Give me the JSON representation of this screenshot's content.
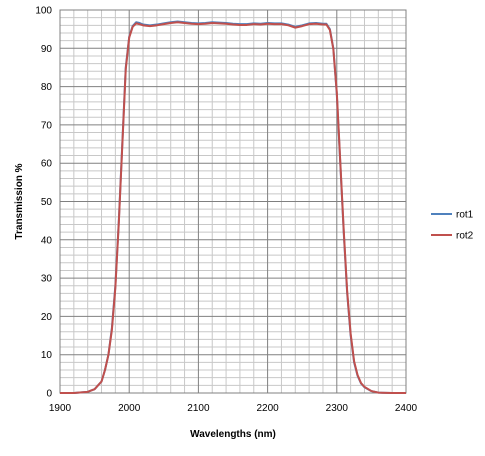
{
  "chart_data": {
    "type": "line",
    "title": "",
    "xlabel": "Wavelengths (nm)",
    "ylabel": "Transmission %",
    "xlim": [
      1900,
      2400
    ],
    "ylim": [
      0,
      100
    ],
    "x_ticks": [
      1900,
      2000,
      2100,
      2200,
      2300,
      2400
    ],
    "y_ticks": [
      0,
      10,
      20,
      30,
      40,
      50,
      60,
      70,
      80,
      90,
      100
    ],
    "x_minor_step": 20,
    "y_minor_step": 2,
    "grid": true,
    "legend_position": "right",
    "series": [
      {
        "name": "rot1",
        "color": "#4f81bd",
        "x": [
          1900,
          1920,
          1940,
          1950,
          1960,
          1965,
          1970,
          1975,
          1980,
          1985,
          1990,
          1995,
          2000,
          2005,
          2010,
          2015,
          2020,
          2030,
          2040,
          2050,
          2060,
          2070,
          2080,
          2090,
          2100,
          2110,
          2120,
          2130,
          2140,
          2150,
          2160,
          2170,
          2180,
          2190,
          2200,
          2210,
          2220,
          2230,
          2240,
          2250,
          2260,
          2270,
          2280,
          2285,
          2290,
          2295,
          2300,
          2305,
          2310,
          2315,
          2320,
          2325,
          2330,
          2335,
          2340,
          2350,
          2360,
          2380,
          2400
        ],
        "y": [
          0,
          0,
          0.3,
          1,
          3,
          6,
          10,
          17,
          28,
          45,
          65,
          85,
          93,
          95.8,
          96.8,
          96.6,
          96.2,
          96.0,
          96.2,
          96.5,
          96.8,
          97.0,
          96.8,
          96.6,
          96.5,
          96.6,
          96.8,
          96.7,
          96.6,
          96.4,
          96.3,
          96.3,
          96.5,
          96.4,
          96.6,
          96.5,
          96.5,
          96.2,
          95.6,
          96.0,
          96.5,
          96.6,
          96.4,
          96.4,
          95.0,
          90.0,
          78.0,
          60.0,
          42.0,
          26.0,
          15.0,
          8.0,
          4.5,
          2.5,
          1.5,
          0.5,
          0.1,
          0,
          0
        ]
      },
      {
        "name": "rot2",
        "color": "#c0504d",
        "x": [
          1900,
          1920,
          1940,
          1950,
          1960,
          1965,
          1970,
          1975,
          1980,
          1985,
          1990,
          1995,
          2000,
          2005,
          2010,
          2015,
          2020,
          2030,
          2040,
          2050,
          2060,
          2070,
          2080,
          2090,
          2100,
          2110,
          2120,
          2130,
          2140,
          2150,
          2160,
          2170,
          2180,
          2190,
          2200,
          2210,
          2220,
          2230,
          2240,
          2250,
          2260,
          2270,
          2280,
          2285,
          2290,
          2295,
          2300,
          2305,
          2310,
          2315,
          2320,
          2325,
          2330,
          2335,
          2340,
          2350,
          2360,
          2380,
          2400
        ],
        "y": [
          0,
          0,
          0.3,
          1,
          3,
          6,
          10,
          16.5,
          27.5,
          44.5,
          64.5,
          84.5,
          92.8,
          95.6,
          96.5,
          96.3,
          96.0,
          95.8,
          96.0,
          96.3,
          96.6,
          96.8,
          96.6,
          96.4,
          96.3,
          96.4,
          96.6,
          96.5,
          96.4,
          96.2,
          96.1,
          96.1,
          96.3,
          96.2,
          96.4,
          96.3,
          96.3,
          96.0,
          95.4,
          95.8,
          96.3,
          96.4,
          96.2,
          96.2,
          94.8,
          89.8,
          78.5,
          60.5,
          42.5,
          26.5,
          15.5,
          8.3,
          4.7,
          2.6,
          1.6,
          0.5,
          0.1,
          0,
          0
        ]
      }
    ]
  }
}
